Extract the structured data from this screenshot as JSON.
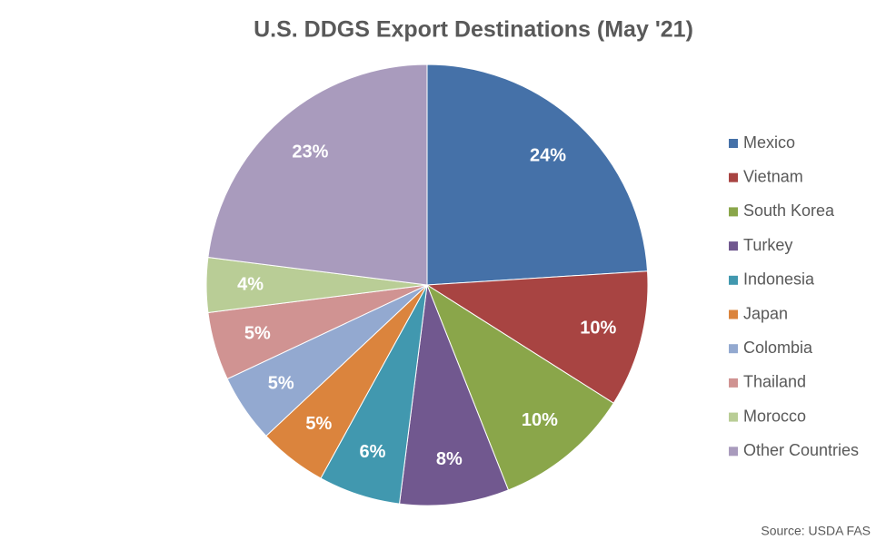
{
  "chart_data": {
    "type": "pie",
    "title": "U.S. DDGS Export Destinations (May '21)",
    "categories": [
      "Mexico",
      "Vietnam",
      "South Korea",
      "Turkey",
      "Indonesia",
      "Japan",
      "Colombia",
      "Thailand",
      "Morocco",
      "Other Countries"
    ],
    "values": [
      24,
      10,
      10,
      8,
      6,
      5,
      5,
      5,
      4,
      23
    ],
    "value_labels": [
      "24%",
      "10%",
      "10%",
      "8%",
      "6%",
      "5%",
      "5%",
      "5%",
      "4%",
      "23%"
    ],
    "colors": [
      "#4571a8",
      "#a84442",
      "#8aa64a",
      "#71588f",
      "#4198af",
      "#db843d",
      "#93a9d0",
      "#d09392",
      "#b9cd96",
      "#a99bbd"
    ],
    "legend": "right",
    "source": "Source: USDA FAS"
  }
}
